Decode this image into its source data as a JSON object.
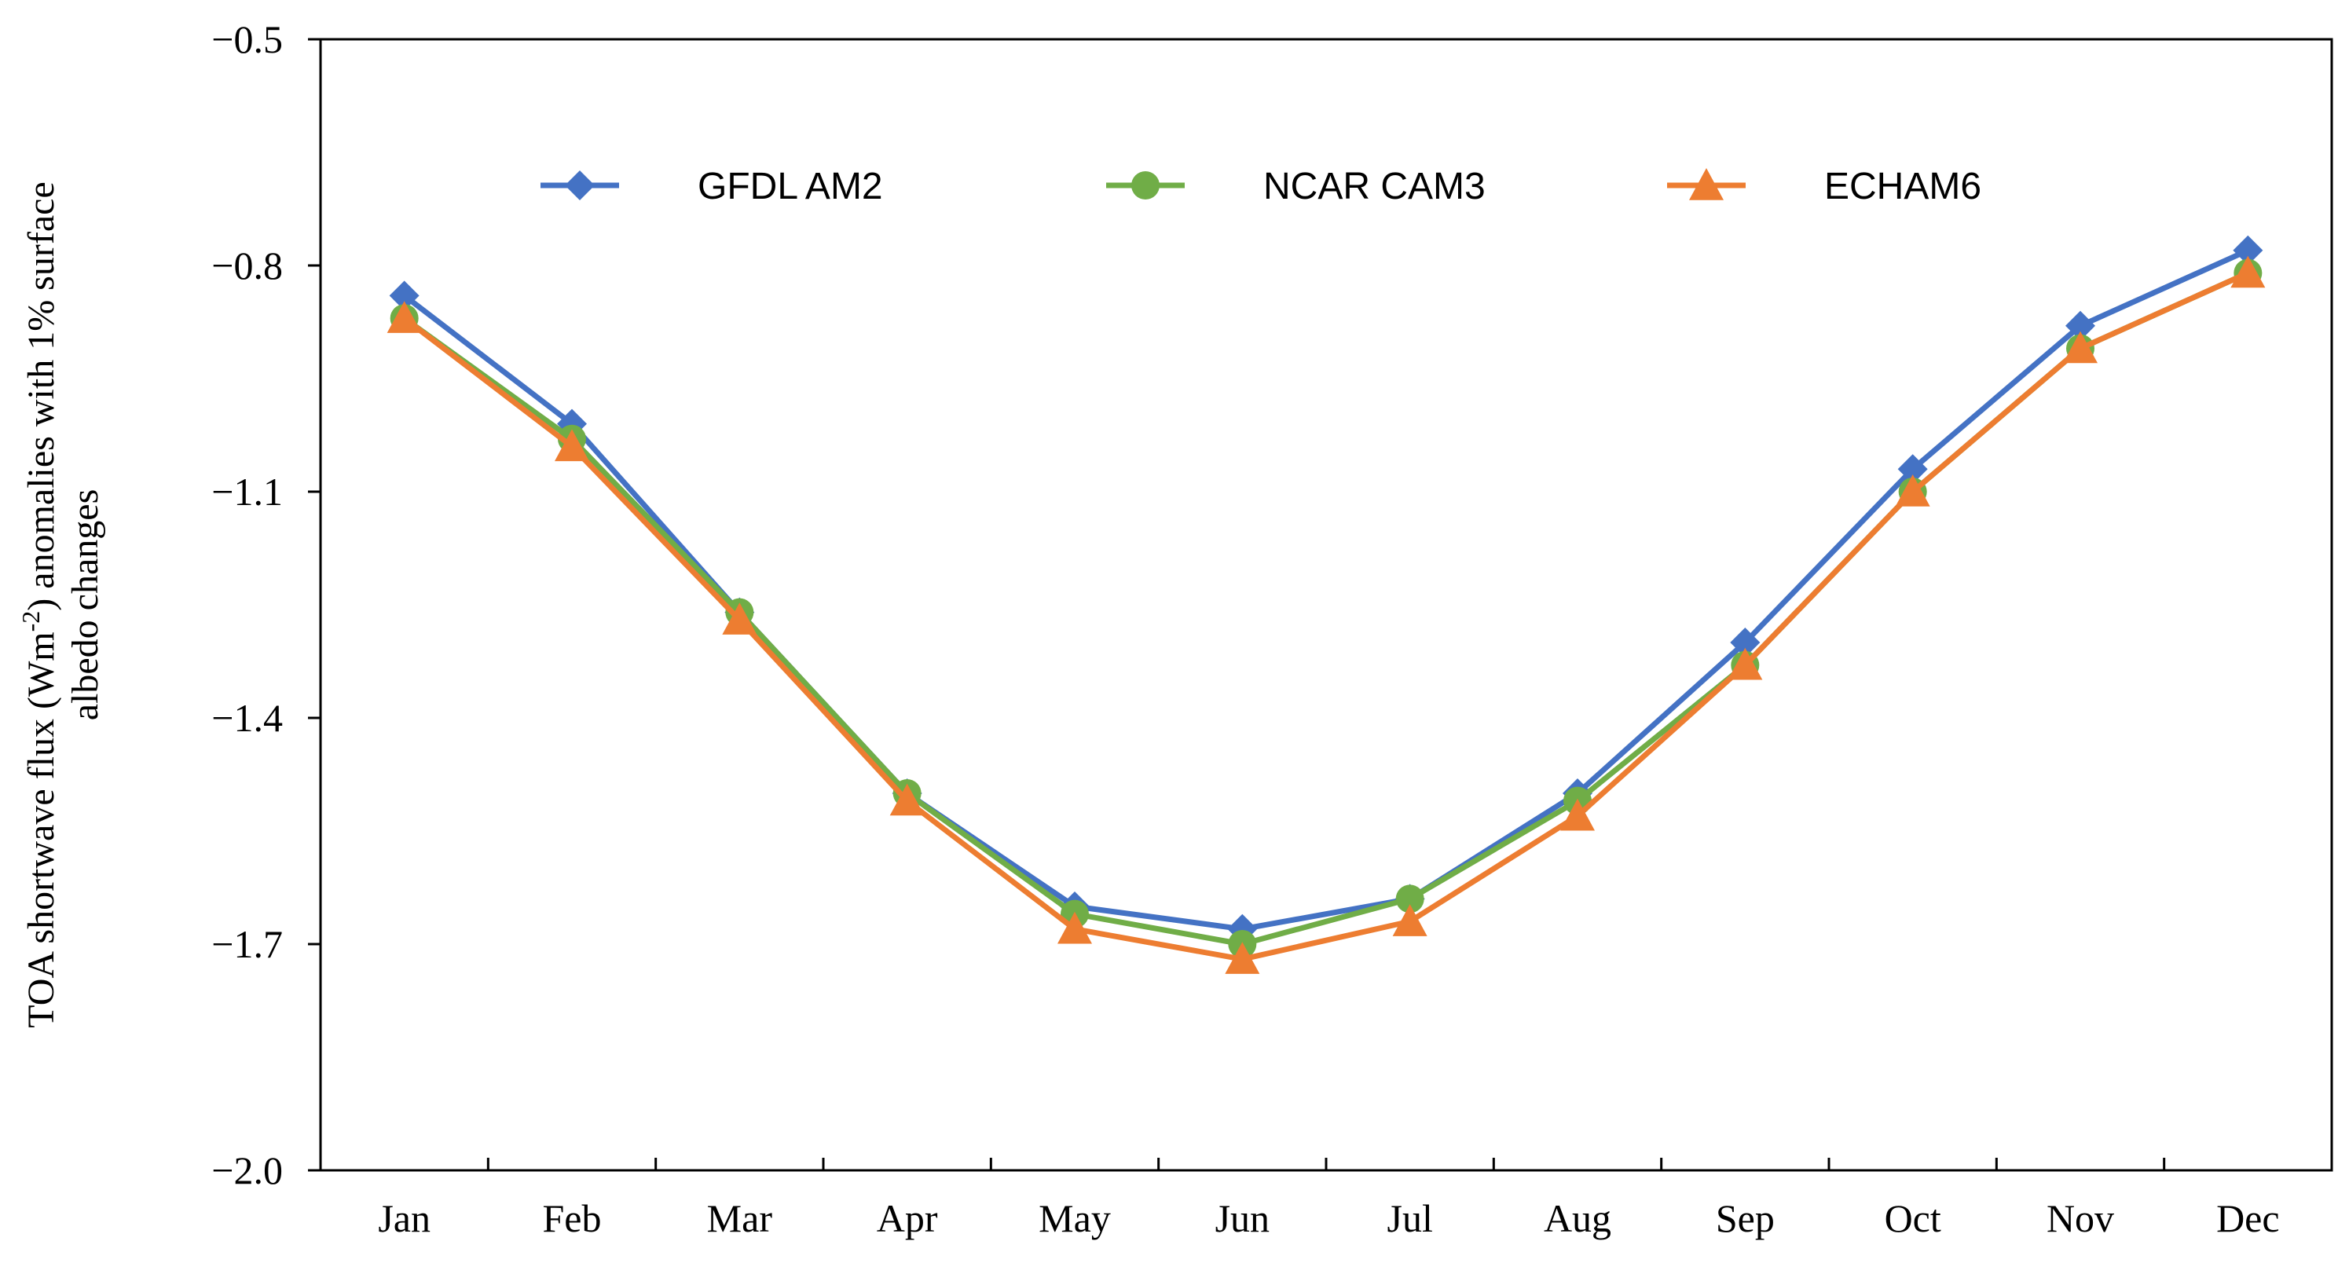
{
  "chart_data": {
    "type": "line",
    "title": "",
    "xlabel": "",
    "ylabel_line1": "TOA shortwave flux (Wm",
    "ylabel_sup": "-2",
    "ylabel_line1_end": ") anomalies with 1% surface",
    "ylabel_line2": "albedo changes",
    "categories": [
      "Jan",
      "Feb",
      "Mar",
      "Apr",
      "May",
      "Jun",
      "Jul",
      "Aug",
      "Sep",
      "Oct",
      "Nov",
      "Dec"
    ],
    "ylim": [
      -2.0,
      -0.5
    ],
    "yticks": [
      -2.0,
      -1.7,
      -1.4,
      -1.1,
      -0.8,
      -0.5
    ],
    "ytick_labels": [
      "−2.0",
      "−1.7",
      "−1.4",
      "−1.1",
      "−0.8",
      "−0.5"
    ],
    "legend_position": "top-center",
    "series": [
      {
        "name": "GFDL AM2",
        "marker": "diamond",
        "color": "#4472C4",
        "values": [
          -0.84,
          -1.01,
          -1.26,
          -1.5,
          -1.65,
          -1.68,
          -1.64,
          -1.5,
          -1.3,
          -1.07,
          -0.88,
          -0.78
        ]
      },
      {
        "name": "NCAR CAM3",
        "marker": "circle",
        "color": "#70AD47",
        "values": [
          -0.87,
          -1.03,
          -1.26,
          -1.5,
          -1.66,
          -1.7,
          -1.64,
          -1.51,
          -1.33,
          -1.1,
          -0.91,
          -0.81
        ]
      },
      {
        "name": "ECHAM6",
        "marker": "triangle",
        "color": "#ED7D31",
        "values": [
          -0.87,
          -1.04,
          -1.27,
          -1.51,
          -1.68,
          -1.72,
          -1.67,
          -1.53,
          -1.33,
          -1.1,
          -0.91,
          -0.81
        ]
      }
    ]
  }
}
